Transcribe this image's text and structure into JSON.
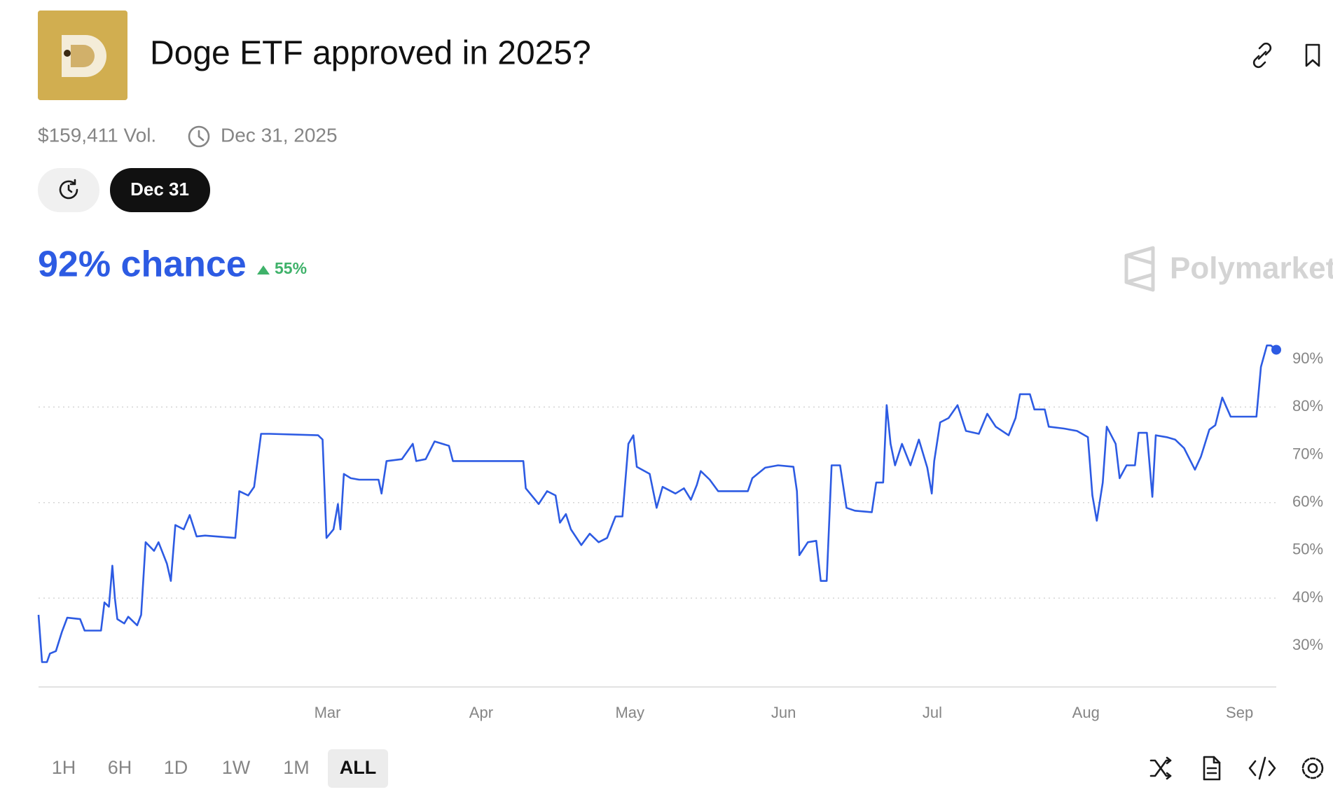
{
  "header": {
    "title": "Doge ETF approved in 2025?",
    "volume": "$159,411 Vol.",
    "end_date": "Dec 31, 2025",
    "date_tab": "Dec 31"
  },
  "summary": {
    "chance": "92% chance",
    "change": "55%",
    "brand": "Polymarket"
  },
  "range_buttons": [
    "1H",
    "6H",
    "1D",
    "1W",
    "1M",
    "ALL"
  ],
  "chart_data": {
    "type": "line",
    "x": [
      0.7,
      1.4,
      2.4,
      3.0,
      4.2,
      5.4,
      6.5,
      9.1,
      10.0,
      13.3,
      14.0,
      14.9,
      15.6,
      16.1,
      16.6,
      18.0,
      18.8,
      20.6,
      21.4,
      22.3,
      24.0,
      24.9,
      26.6,
      27.4,
      28.3,
      30.0,
      31.2,
      32.6,
      34.3,
      40.4,
      41.2,
      43.0,
      44.2,
      45.6,
      47.3,
      57.1,
      58.0,
      58.8,
      60.2,
      61.1,
      61.6,
      62.3,
      63.7,
      65.4,
      69.3,
      69.9,
      70.9,
      74.0,
      76.2,
      76.9,
      78.8,
      80.6,
      83.5,
      84.3,
      88.7,
      98.5,
      99.0,
      101.6,
      103.3,
      105.0,
      105.9,
      107.1,
      108.1,
      110.2,
      111.9,
      113.7,
      115.4,
      117.1,
      118.5,
      119.7,
      120.7,
      121.4,
      124.0,
      125.4,
      126.6,
      129.2,
      130.9,
      132.3,
      133.5,
      134.3,
      136.1,
      137.8,
      140.4,
      143.8,
      144.7,
      147.3,
      149.9,
      153.0,
      153.7,
      154.2,
      155.9,
      157.6,
      158.5,
      159.7,
      160.7,
      162.4,
      163.7,
      165.4,
      168.8,
      169.7,
      171.1,
      171.8,
      172.6,
      173.5,
      174.9,
      176.6,
      178.3,
      180.0,
      180.9,
      181.4,
      182.6,
      184.3,
      186.1,
      187.8,
      190.4,
      192.1,
      193.8,
      196.4,
      197.8,
      198.7,
      200.7,
      201.6,
      203.7,
      204.5,
      207.6,
      210.2,
      212.4,
      213.3,
      214.2,
      215.4,
      216.2,
      218.0,
      218.8,
      220.2,
      221.9,
      222.6,
      224.3,
      225.4,
      226.1,
      228.3,
      230.0,
      231.8,
      234.0,
      235.2,
      236.9,
      238.1,
      239.5,
      241.2,
      246.4,
      247.3,
      248.5,
      249.3,
      250.4
    ],
    "series": [
      {
        "name": "Yes",
        "color": "#2d5be3",
        "values": [
          36.5,
          26.6,
          26.6,
          28.4,
          28.9,
          32.9,
          35.9,
          35.6,
          33.2,
          33.2,
          39.1,
          38.2,
          46.8,
          40.0,
          35.6,
          34.7,
          36.1,
          34.3,
          36.5,
          51.7,
          49.9,
          51.7,
          47.2,
          43.6,
          55.3,
          54.4,
          57.4,
          52.9,
          53.1,
          52.6,
          62.4,
          61.5,
          63.3,
          74.4,
          74.4,
          74.1,
          73.2,
          52.6,
          54.4,
          59.7,
          54.4,
          66.0,
          65.1,
          64.8,
          64.8,
          61.9,
          68.7,
          69.1,
          72.3,
          68.7,
          69.1,
          72.8,
          71.9,
          68.7,
          68.7,
          68.7,
          63.0,
          59.7,
          62.4,
          61.5,
          55.8,
          57.6,
          54.4,
          51.1,
          53.5,
          51.7,
          52.6,
          57.1,
          57.1,
          72.3,
          74.1,
          67.5,
          66.0,
          58.9,
          63.3,
          61.9,
          63.0,
          60.6,
          63.7,
          66.6,
          64.8,
          62.4,
          62.4,
          62.4,
          65.1,
          67.3,
          67.8,
          67.5,
          62.4,
          49.0,
          51.7,
          52.0,
          43.6,
          43.6,
          67.8,
          67.8,
          58.9,
          58.3,
          58.0,
          64.2,
          64.2,
          80.4,
          72.3,
          67.8,
          72.3,
          67.8,
          73.2,
          67.3,
          61.9,
          68.7,
          76.8,
          77.7,
          80.4,
          75.0,
          74.4,
          78.6,
          75.9,
          74.1,
          77.7,
          82.7,
          82.7,
          79.5,
          79.5,
          75.9,
          75.5,
          75.0,
          73.7,
          61.5,
          56.2,
          64.2,
          75.9,
          72.3,
          65.1,
          67.8,
          67.8,
          74.6,
          74.6,
          61.2,
          74.1,
          73.7,
          73.2,
          71.4,
          66.9,
          69.6,
          75.3,
          76.2,
          82.0,
          78.0,
          78.0,
          88.4,
          92.9,
          92.9,
          92
        ]
      }
    ],
    "xlim": [
      0.7,
      250.4
    ],
    "ylim": [
      21.4,
      95
    ],
    "xticks": [
      {
        "value": 59,
        "label": "Mar"
      },
      {
        "value": 90,
        "label": "Apr"
      },
      {
        "value": 120,
        "label": "May"
      },
      {
        "value": 151,
        "label": "Jun"
      },
      {
        "value": 181,
        "label": "Jul"
      },
      {
        "value": 212,
        "label": "Aug"
      },
      {
        "value": 243,
        "label": "Sep"
      }
    ],
    "yticks": [
      {
        "value": 30,
        "label": "30%"
      },
      {
        "value": 40,
        "label": "40%"
      },
      {
        "value": 50,
        "label": "50%"
      },
      {
        "value": 60,
        "label": "60%"
      },
      {
        "value": 70,
        "label": "70%"
      },
      {
        "value": 80,
        "label": "80%"
      },
      {
        "value": 90,
        "label": "90%"
      }
    ],
    "grid": true
  }
}
